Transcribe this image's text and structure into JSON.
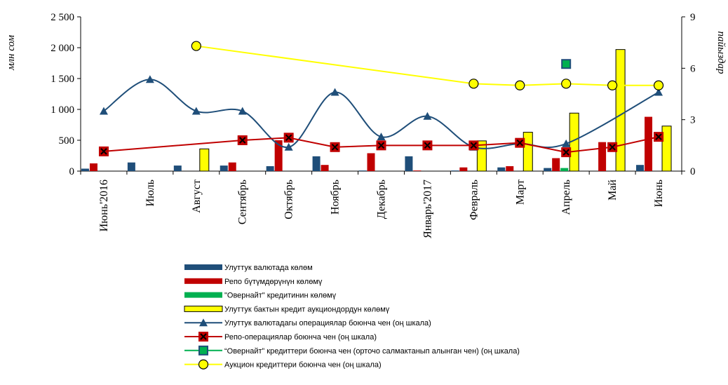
{
  "chart_data": {
    "type": "bar",
    "ylabel": "млн сом",
    "y2label": "пайыздар",
    "ylim": [
      0,
      2500
    ],
    "y2lim": [
      0,
      9
    ],
    "yticks": [
      "0",
      "500",
      "1 000",
      "1 500",
      "2 000",
      "2 500"
    ],
    "y2ticks": [
      "0",
      "3",
      "6",
      "9"
    ],
    "categories": [
      "Июнь'2016",
      "Июль",
      "Август",
      "Сентябрь",
      "Октябрь",
      "Ноябрь",
      "Декабрь",
      "Январь'2017",
      "Февраль",
      "Март",
      "Апрель",
      "Май",
      "Июнь"
    ],
    "bar_series": [
      {
        "name": "Улуттук валютада көлөм",
        "color": "#1f4e79",
        "values": [
          40,
          140,
          90,
          90,
          80,
          240,
          10,
          240,
          10,
          60,
          50,
          0,
          100
        ]
      },
      {
        "name": "Репо  бүтүмдөрүнүн көлөмү",
        "color": "#c00000",
        "values": [
          125,
          0,
          0,
          140,
          500,
          100,
          290,
          10,
          60,
          80,
          210,
          470,
          880
        ]
      },
      {
        "name": "\"Овернайт\" кредитинин көлөмү",
        "color": "#00b050",
        "values": [
          0,
          0,
          0,
          0,
          0,
          0,
          0,
          0,
          0,
          0,
          50,
          0,
          0
        ]
      },
      {
        "name": "Улуттук бактын кредит аукциондордун көлөмү",
        "color": "#ffff00",
        "values": [
          0,
          0,
          360,
          0,
          0,
          0,
          0,
          0,
          490,
          630,
          940,
          1970,
          730
        ]
      }
    ],
    "line_series": [
      {
        "name": "Улуттук валютадагы операциялар боюнча чен (оң шкала)",
        "color": "#1f4e79",
        "marker": "triangle",
        "values": [
          3.5,
          5.35,
          3.5,
          3.5,
          1.4,
          4.6,
          2.0,
          3.2,
          1.4,
          1.6,
          1.6,
          null,
          4.6
        ]
      },
      {
        "name": "Репо-операциялар боюнча чен (оң шкала)",
        "color": "#c00000",
        "marker": "x-square",
        "values": [
          1.15,
          null,
          null,
          1.8,
          1.95,
          1.4,
          1.5,
          1.5,
          1.5,
          1.65,
          1.1,
          1.4,
          2.0
        ]
      },
      {
        "name": "“Овернайт” кредиттери боюнча чен (орточо салмактанып алынган чен) (оң шкала)",
        "color": "#00b050",
        "marker": "square",
        "values": [
          null,
          null,
          null,
          null,
          null,
          null,
          null,
          null,
          null,
          null,
          6.25,
          null,
          null
        ]
      },
      {
        "name": "Аукцион кредиттери боюнча чен (оң шкала)",
        "color": "#ffff00",
        "marker": "circle",
        "values": [
          null,
          null,
          7.3,
          null,
          null,
          null,
          null,
          null,
          5.1,
          5.0,
          5.1,
          5.0,
          5.0
        ]
      }
    ]
  }
}
